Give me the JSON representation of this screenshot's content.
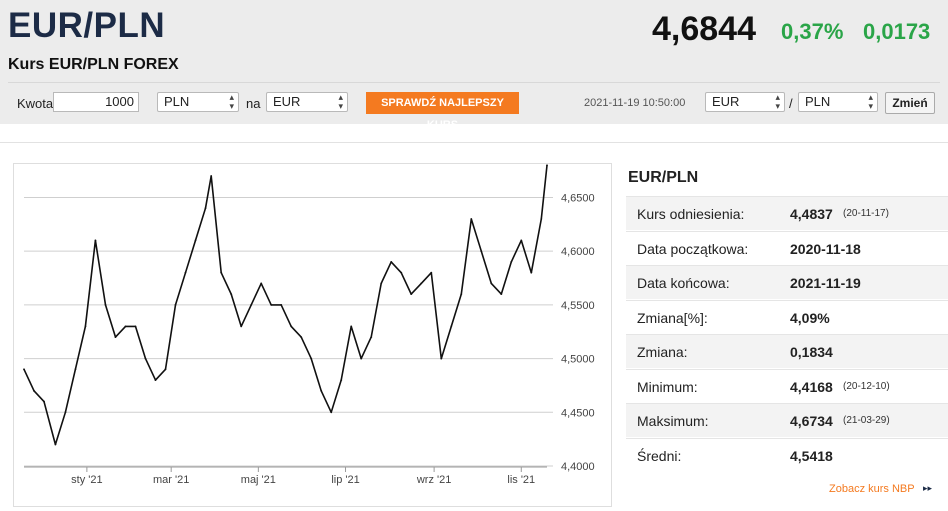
{
  "header": {
    "pair": "EUR/PLN",
    "subtitle": "Kurs EUR/PLN FOREX",
    "price": "4,6844",
    "change_pct": "0,37%",
    "change_abs": "0,0173"
  },
  "converter": {
    "amount_label": "Kwota",
    "amount_value": "1000",
    "from_currency": "PLN",
    "to_label": "na",
    "to_currency": "EUR",
    "cta_label": "SPRAWDŹ NAJLEPSZY KURS",
    "timestamp": "2021-11-19 10:50:00",
    "pair_from": "EUR",
    "pair_sep": "/",
    "pair_to": "PLN",
    "change_label": "Zmień"
  },
  "stats": {
    "title": "EUR/PLN",
    "rows": [
      {
        "label": "Kurs odniesienia:",
        "value": "4,4837",
        "date": "(20-11-17)"
      },
      {
        "label": "Data początkowa:",
        "value": "2020-11-18",
        "date": ""
      },
      {
        "label": "Data końcowa:",
        "value": "2021-11-19",
        "date": ""
      },
      {
        "label": "Zmiana[%]:",
        "value": "4,09%",
        "date": ""
      },
      {
        "label": "Zmiana:",
        "value": "0,1834",
        "date": ""
      },
      {
        "label": "Minimum:",
        "value": "4,4168",
        "date": "(20-12-10)"
      },
      {
        "label": "Maksimum:",
        "value": "4,6734",
        "date": "(21-03-29)"
      },
      {
        "label": "Średni:",
        "value": "4,5418",
        "date": ""
      }
    ],
    "nbp_link": "Zobacz kurs NBP",
    "nbp_arrow": "▸▸"
  },
  "colors": {
    "accent": "#f47a20",
    "positive": "#2aa548",
    "title": "#1c2b46"
  },
  "chart_data": {
    "type": "line",
    "title": "",
    "xlabel": "",
    "ylabel": "",
    "ylim": [
      4.4,
      4.67
    ],
    "yticks": [
      "4,6500",
      "4,6000",
      "4,5500",
      "4,5000",
      "4,4500",
      "4,4000"
    ],
    "ytick_values": [
      4.65,
      4.6,
      4.55,
      4.5,
      4.45,
      4.4
    ],
    "xticks": [
      "sty '21",
      "mar '21",
      "maj '21",
      "lip '21",
      "wrz '21",
      "lis '21"
    ],
    "xtick_dates": [
      "2021-01-01",
      "2021-03-01",
      "2021-05-01",
      "2021-07-01",
      "2021-09-01",
      "2021-11-01"
    ],
    "x_range": [
      "2020-11-18",
      "2021-11-19"
    ],
    "grid": true,
    "series": [
      {
        "x": [
          "2020-11-18",
          "2020-11-25",
          "2020-12-02",
          "2020-12-10",
          "2020-12-17",
          "2020-12-24",
          "2020-12-31",
          "2021-01-07",
          "2021-01-14",
          "2021-01-21",
          "2021-01-28",
          "2021-02-04",
          "2021-02-11",
          "2021-02-18",
          "2021-02-25",
          "2021-03-04",
          "2021-03-11",
          "2021-03-18",
          "2021-03-25",
          "2021-03-29",
          "2021-04-05",
          "2021-04-12",
          "2021-04-19",
          "2021-04-26",
          "2021-05-03",
          "2021-05-10",
          "2021-05-17",
          "2021-05-24",
          "2021-05-31",
          "2021-06-07",
          "2021-06-14",
          "2021-06-21",
          "2021-06-28",
          "2021-07-05",
          "2021-07-12",
          "2021-07-19",
          "2021-07-26",
          "2021-08-02",
          "2021-08-09",
          "2021-08-16",
          "2021-08-23",
          "2021-08-30",
          "2021-09-06",
          "2021-09-13",
          "2021-09-20",
          "2021-09-27",
          "2021-10-04",
          "2021-10-11",
          "2021-10-18",
          "2021-10-25",
          "2021-11-01",
          "2021-11-08",
          "2021-11-15",
          "2021-11-19"
        ],
        "y": [
          4.49,
          4.47,
          4.46,
          4.42,
          4.45,
          4.49,
          4.53,
          4.61,
          4.55,
          4.52,
          4.53,
          4.53,
          4.5,
          4.48,
          4.49,
          4.55,
          4.58,
          4.61,
          4.64,
          4.67,
          4.58,
          4.56,
          4.53,
          4.55,
          4.57,
          4.55,
          4.55,
          4.53,
          4.52,
          4.5,
          4.47,
          4.45,
          4.48,
          4.53,
          4.5,
          4.52,
          4.57,
          4.59,
          4.58,
          4.56,
          4.57,
          4.58,
          4.5,
          4.53,
          4.56,
          4.63,
          4.6,
          4.57,
          4.56,
          4.59,
          4.61,
          4.58,
          4.63,
          4.68
        ]
      }
    ]
  }
}
